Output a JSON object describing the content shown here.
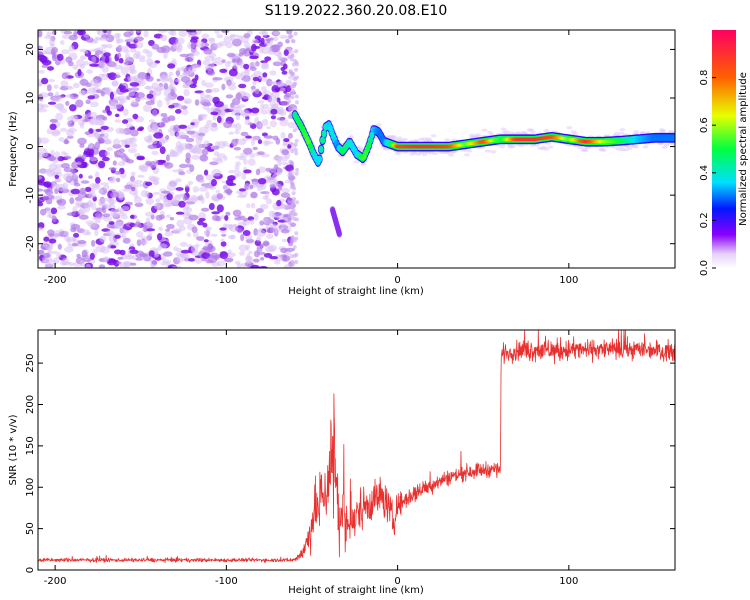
{
  "title": "S119.2022.360.20.08.E10",
  "chart_data": [
    {
      "type": "heatmap",
      "name": "spectrogram",
      "xlabel": "Height of straight line (km)",
      "ylabel": "Frequency (Hz)",
      "xlim": [
        -210,
        162
      ],
      "ylim": [
        -25,
        24
      ],
      "xticks": [
        -200,
        -100,
        0,
        100
      ],
      "yticks": [
        -20,
        -10,
        0,
        10,
        20
      ],
      "noise_region": [
        -210,
        -61
      ],
      "ridge": {
        "x": [
          -60,
          -56,
          -52,
          -49,
          -46,
          -44,
          -42,
          -40,
          -38,
          -35,
          -32,
          -28,
          -24,
          -20,
          -17,
          -14,
          -11,
          -8,
          -4,
          0,
          10,
          20,
          30,
          40,
          50,
          60,
          70,
          80,
          90,
          100,
          110,
          120,
          130,
          140,
          150,
          162
        ],
        "y": [
          6.5,
          4.0,
          1.0,
          -1.5,
          -3.5,
          1.0,
          4.0,
          4.5,
          2.5,
          0.0,
          -1.0,
          1.0,
          -1.5,
          -2.5,
          0.0,
          3.5,
          3.0,
          1.0,
          0.5,
          0.0,
          0.0,
          0.0,
          0.0,
          0.5,
          1.0,
          1.5,
          1.5,
          1.5,
          2.0,
          1.5,
          1.0,
          1.0,
          1.2,
          1.5,
          1.8,
          1.8
        ],
        "amplitude": [
          0.45,
          0.5,
          0.55,
          0.4,
          0.35,
          0.45,
          0.4,
          0.35,
          0.4,
          0.3,
          0.5,
          0.4,
          0.35,
          0.55,
          0.5,
          0.35,
          0.3,
          0.3,
          0.45,
          0.85,
          0.9,
          0.9,
          0.85,
          0.55,
          0.85,
          0.45,
          0.9,
          0.9,
          0.85,
          0.55,
          0.9,
          0.6,
          0.5,
          0.35,
          0.3,
          0.3
        ]
      },
      "streak": {
        "x": [
          -38,
          -34
        ],
        "y": [
          -13,
          -18
        ]
      },
      "colorbar": {
        "label": "Normalized spectral amplitude",
        "range": [
          0.0,
          1.0
        ],
        "ticks": [
          "0.0",
          "0.2",
          "0.4",
          "0.6",
          "0.8"
        ]
      }
    },
    {
      "type": "line",
      "name": "snr",
      "xlabel": "Height of straight line (km)",
      "ylabel": "SNR (10 * v/v)",
      "xlim": [
        -210,
        162
      ],
      "ylim": [
        0,
        290
      ],
      "xticks": [
        -200,
        -100,
        0,
        100
      ],
      "yticks": [
        0,
        50,
        100,
        150,
        200,
        250
      ],
      "color": "#e8312f",
      "series": [
        {
          "name": "SNR",
          "x": [
            -210,
            -61,
            -58,
            -55,
            -52,
            -49,
            -46,
            -44,
            -42,
            -40,
            -38,
            -36,
            -34,
            -32,
            -30,
            -26,
            -22,
            -18,
            -14,
            -10,
            -6,
            -2,
            0,
            5,
            10,
            15,
            20,
            25,
            30,
            35,
            40,
            45,
            50,
            55,
            60,
            60.5,
            62,
            70,
            80,
            90,
            100,
            110,
            120,
            130,
            140,
            150,
            162
          ],
          "values": [
            12,
            12,
            16,
            22,
            40,
            65,
            80,
            95,
            90,
            120,
            140,
            120,
            60,
            70,
            55,
            55,
            75,
            80,
            85,
            90,
            80,
            55,
            78,
            85,
            93,
            98,
            103,
            108,
            112,
            115,
            118,
            120,
            121,
            122,
            122,
            260,
            262,
            265,
            266,
            265,
            266,
            266,
            267,
            266,
            267,
            266,
            264
          ],
          "noise": [
            2,
            2,
            4,
            8,
            18,
            28,
            30,
            35,
            35,
            45,
            80,
            60,
            35,
            30,
            22,
            20,
            22,
            22,
            22,
            20,
            18,
            18,
            12,
            10,
            10,
            9,
            9,
            8,
            8,
            8,
            8,
            8,
            8,
            8,
            8,
            8,
            10,
            10,
            12,
            12,
            12,
            10,
            10,
            10,
            10,
            10,
            10
          ]
        }
      ]
    }
  ]
}
